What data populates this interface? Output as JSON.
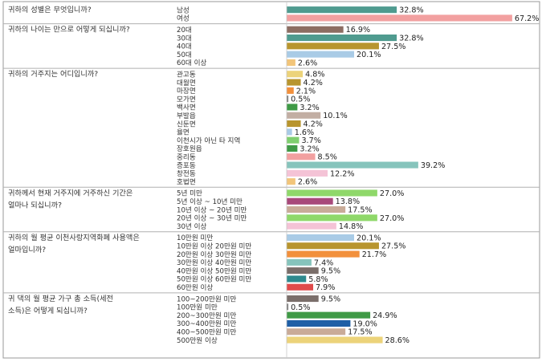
{
  "chart_data": {
    "type": "bar",
    "orientation": "horizontal",
    "value_suffix": "%",
    "xlim": [
      0,
      67.2
    ],
    "grid": false,
    "legend": "none",
    "groups": [
      {
        "question": "귀하의 성별은 무엇입니까?",
        "items": [
          {
            "label": "남성",
            "value": 32.8,
            "color": "#4f9b8f"
          },
          {
            "label": "여성",
            "value": 67.2,
            "color": "#f2a0a0"
          }
        ]
      },
      {
        "question": "귀하의 나이는 만으로 어떻게 되십니까?",
        "items": [
          {
            "label": "20대",
            "value": 16.9,
            "color": "#8c6d62"
          },
          {
            "label": "30대",
            "value": 32.8,
            "color": "#4f9b8f"
          },
          {
            "label": "40대",
            "value": 27.5,
            "color": "#b8952e"
          },
          {
            "label": "50대",
            "value": 20.1,
            "color": "#a9cbe6"
          },
          {
            "label": "60대 이상",
            "value": 2.6,
            "color": "#f2c57a"
          }
        ]
      },
      {
        "question": "귀하의 거주지는 어디입니까?",
        "items": [
          {
            "label": "관고동",
            "value": 4.8,
            "color": "#ecd37a"
          },
          {
            "label": "대월면",
            "value": 4.2,
            "color": "#b8952e"
          },
          {
            "label": "마장면",
            "value": 2.1,
            "color": "#f2903c"
          },
          {
            "label": "모가면",
            "value": 0.5,
            "color": "#7f7f7f"
          },
          {
            "label": "백사면",
            "value": 3.2,
            "color": "#3f9a46"
          },
          {
            "label": "부발읍",
            "value": 10.1,
            "color": "#c2aea3"
          },
          {
            "label": "신둔면",
            "value": 4.2,
            "color": "#b8952e"
          },
          {
            "label": "율면",
            "value": 1.6,
            "color": "#a9cbe6"
          },
          {
            "label": "이천시가 아닌 타 지역",
            "value": 3.7,
            "color": "#7fcf6f"
          },
          {
            "label": "장호원읍",
            "value": 3.2,
            "color": "#3f9a46"
          },
          {
            "label": "중리동",
            "value": 8.5,
            "color": "#f2a0a0"
          },
          {
            "label": "증포동",
            "value": 39.2,
            "color": "#86c4bc"
          },
          {
            "label": "창전동",
            "value": 12.2,
            "color": "#f4c3d6"
          },
          {
            "label": "호법면",
            "value": 2.6,
            "color": "#f2c57a"
          }
        ]
      },
      {
        "question": "귀하께서 현재 거주지에 거주하신 기간은 얼마나 되십니까?",
        "items": [
          {
            "label": "5년 미만",
            "value": 27.0,
            "color": "#8fd86a"
          },
          {
            "label": "5년 이상 ~ 10년 미만",
            "value": 13.8,
            "color": "#a8497a"
          },
          {
            "label": "10년 이상 ~ 20년 미만",
            "value": 17.5,
            "color": "#c9ab98"
          },
          {
            "label": "20년 이상 ~ 30년 미만",
            "value": 27.0,
            "color": "#8fd86a"
          },
          {
            "label": "30년 이상",
            "value": 14.8,
            "color": "#f4c3d6"
          }
        ]
      },
      {
        "question": "귀하의 월 평균 이천사랑지역화폐 사용액은 얼마입니까?",
        "items": [
          {
            "label": "10만원 미만",
            "value": 20.1,
            "color": "#a9cbe6"
          },
          {
            "label": "10만원 이상 20만원 미만",
            "value": 27.5,
            "color": "#b8952e"
          },
          {
            "label": "20만원 이상 30만원 미만",
            "value": 21.7,
            "color": "#f2903c"
          },
          {
            "label": "30만원 이상 40만원 미만",
            "value": 7.4,
            "color": "#86c4bc"
          },
          {
            "label": "40만원 이상 50만원 미만",
            "value": 9.5,
            "color": "#7a6e6a"
          },
          {
            "label": "50만원 이상 60만원 미만",
            "value": 5.8,
            "color": "#2e8a8e"
          },
          {
            "label": "60만원 이상",
            "value": 7.9,
            "color": "#e04b4b"
          }
        ]
      },
      {
        "question": "귀 댁의 월 평균 가구 총 소득(세전 소득)은 어떻게 되십니까?",
        "items": [
          {
            "label": "100~200만원 미만",
            "value": 9.5,
            "color": "#7a6e6a"
          },
          {
            "label": "100만원 미만",
            "value": 0.5,
            "color": "#7f7f7f"
          },
          {
            "label": "200~300만원 미만",
            "value": 24.9,
            "color": "#3f9a46"
          },
          {
            "label": "300~400만원 미만",
            "value": 19.0,
            "color": "#1f5fa6"
          },
          {
            "label": "400~500만원 미만",
            "value": 17.5,
            "color": "#c9ab98"
          },
          {
            "label": "500만원 이상",
            "value": 28.6,
            "color": "#ecd37a"
          }
        ]
      }
    ]
  }
}
